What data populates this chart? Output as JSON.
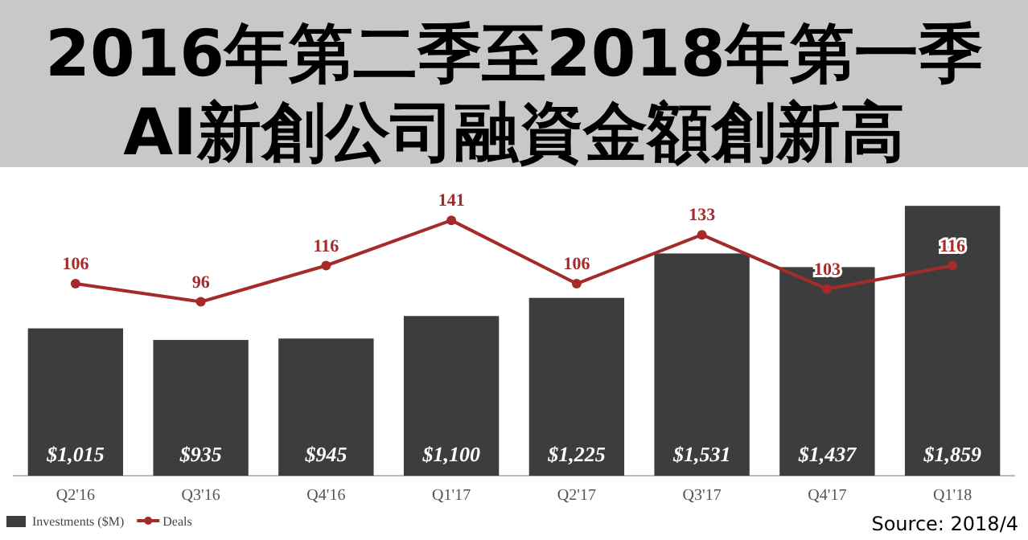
{
  "chart_data": {
    "type": "bar",
    "title": "2016年第二季至2018年第一季",
    "subtitle": "AI新創公司融資金額創新高",
    "categories": [
      "Q2'16",
      "Q3'16",
      "Q4'16",
      "Q1'17",
      "Q2'17",
      "Q3'17",
      "Q4'17",
      "Q1'18"
    ],
    "series": [
      {
        "name": "Investments ($M)",
        "color": "#3d3d3d",
        "values": [
          1015,
          935,
          945,
          1100,
          1225,
          1531,
          1437,
          1859
        ],
        "value_labels": [
          "$1,015",
          "$935",
          "$945",
          "$1,100",
          "$1,225",
          "$1,531",
          "$1,437",
          "$1,859"
        ]
      },
      {
        "name": "Deals",
        "type": "line",
        "axis": "y2",
        "color": "#a52a2a",
        "values": [
          106,
          96,
          116,
          141,
          106,
          133,
          103,
          116
        ]
      }
    ],
    "data_labels": true,
    "marker": "circle",
    "line_style": "solid",
    "legend": "bottom left",
    "annotations": [
      "Source: 2018/4"
    ]
  }
}
